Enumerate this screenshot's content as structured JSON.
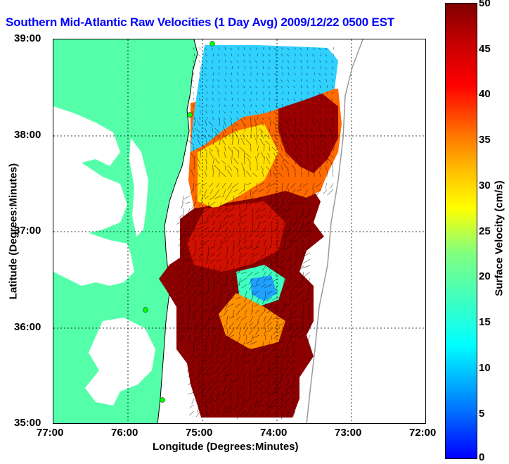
{
  "title": "Southern Mid-Atlantic Raw Velocities (1 Day Avg) 2009/12/22 0500 EST",
  "x_axis": {
    "label": "Longitude (Degrees:Minutes)",
    "ticks": [
      "77:00",
      "76:00",
      "75:00",
      "74:00",
      "73:00",
      "72:00"
    ]
  },
  "y_axis": {
    "label": "Latitude (Degrees:Minutes)",
    "ticks": [
      "39:00",
      "38:00",
      "37:00",
      "36:00",
      "35:00"
    ]
  },
  "colorbar": {
    "label": "Surface Velocity (cm/s)",
    "ticks": [
      "50",
      "45",
      "40",
      "35",
      "30",
      "25",
      "20",
      "15",
      "10",
      "5",
      "0"
    ]
  },
  "colors": {
    "land": "#55ffaa",
    "title": "#0000ff",
    "high_speed": "#800000",
    "low_speed": "#0080ff"
  }
}
